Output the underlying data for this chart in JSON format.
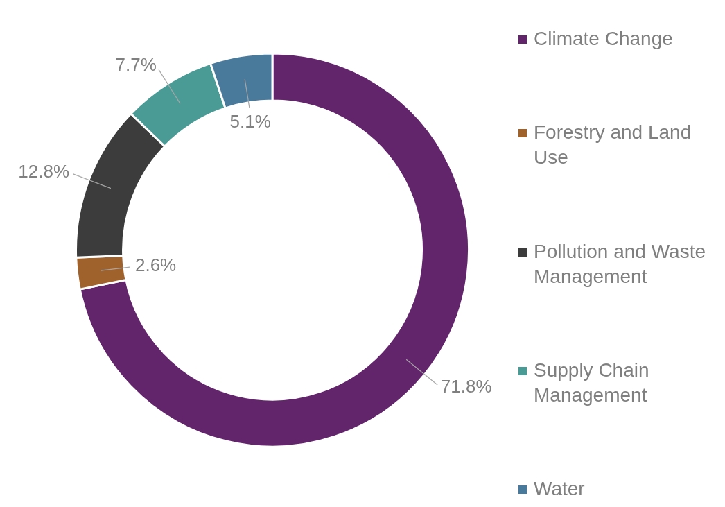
{
  "chart_data": {
    "type": "donut",
    "categories": [
      "Climate Change",
      "Forestry and Land Use",
      "Pollution and Waste Management",
      "Supply Chain Management",
      "Water"
    ],
    "values": [
      71.8,
      2.6,
      12.8,
      7.7,
      5.1
    ],
    "value_labels": [
      "71.8%",
      "2.6%",
      "12.8%",
      "7.7%",
      "5.1%"
    ],
    "colors": [
      "#62246a",
      "#a0622d",
      "#3c3c3c",
      "#4a9b96",
      "#4a7a9b"
    ],
    "legend": "right"
  }
}
